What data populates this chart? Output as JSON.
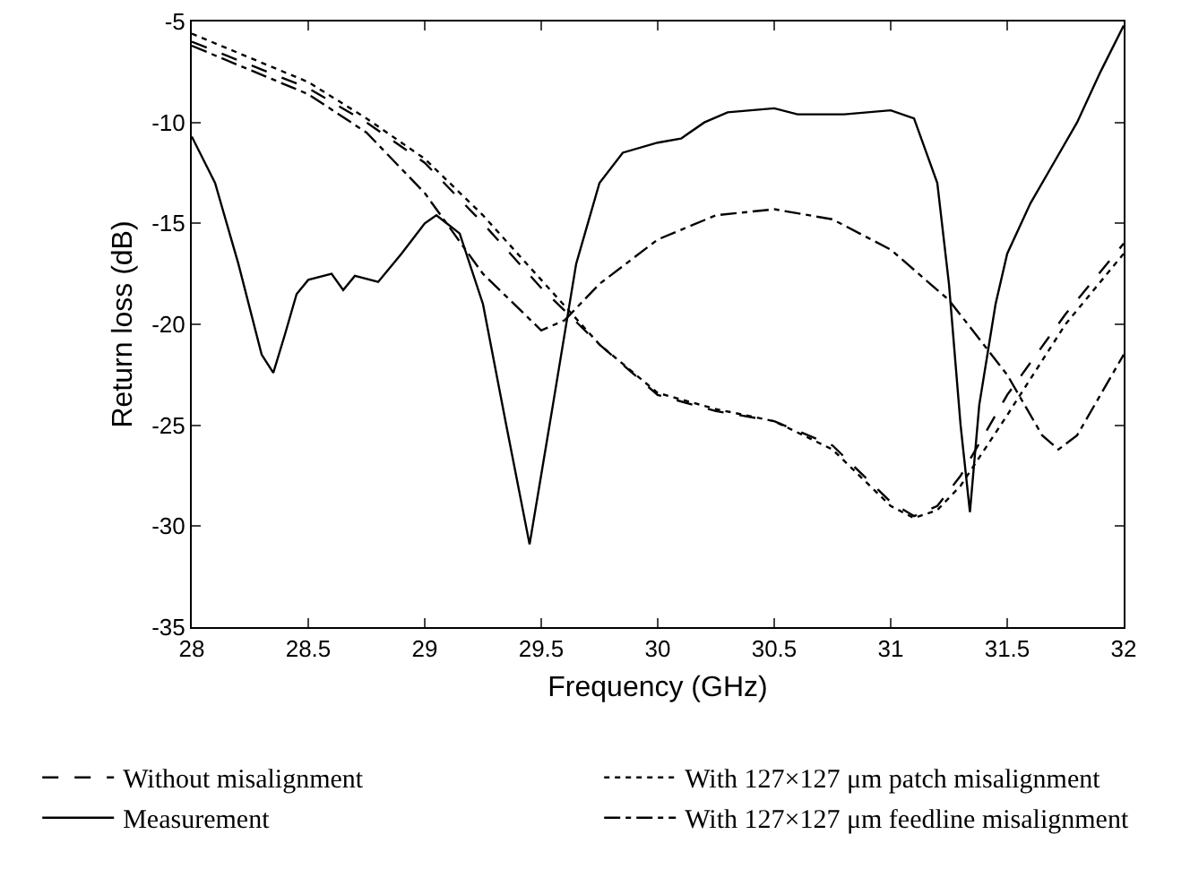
{
  "chart_data": {
    "type": "line",
    "xlabel": "Frequency (GHz)",
    "ylabel": "Return loss (dB)",
    "xlim": [
      28,
      32
    ],
    "ylim": [
      -35,
      -5
    ],
    "xticks": [
      28,
      28.5,
      29,
      29.5,
      30,
      30.5,
      31,
      31.5,
      32
    ],
    "yticks": [
      -35,
      -30,
      -25,
      -20,
      -15,
      -10,
      -5
    ],
    "grid": false,
    "legend": "bottom",
    "marker": "none",
    "series": [
      {
        "name": "Without misalignment",
        "color": "#000000",
        "line_style": "dashed",
        "x": [
          28,
          28.5,
          28.75,
          29,
          29.25,
          29.5,
          29.75,
          30,
          30.25,
          30.5,
          30.75,
          31,
          31.1,
          31.2,
          31.3,
          31.5,
          31.75,
          32
        ],
        "values": [
          -6,
          -8.3,
          -10,
          -12,
          -15,
          -18.2,
          -21,
          -23.5,
          -24.3,
          -24.8,
          -26,
          -28.8,
          -29.5,
          -29,
          -27.5,
          -23.5,
          -19.5,
          -16
        ]
      },
      {
        "name": "With 127×127 μm patch misalignment",
        "color": "#000000",
        "line_style": "dotted",
        "x": [
          28,
          28.5,
          28.75,
          29,
          29.25,
          29.5,
          29.75,
          30,
          30.25,
          30.5,
          30.75,
          31,
          31.1,
          31.2,
          31.3,
          31.5,
          31.75,
          32
        ],
        "values": [
          -5.6,
          -8,
          -9.8,
          -11.8,
          -14.6,
          -17.8,
          -21,
          -23.4,
          -24.2,
          -24.8,
          -26.2,
          -29,
          -29.6,
          -29.2,
          -28,
          -24.5,
          -20,
          -16.5
        ]
      },
      {
        "name": "Measurement",
        "color": "#000000",
        "line_style": "solid",
        "x": [
          28,
          28.1,
          28.2,
          28.3,
          28.35,
          28.4,
          28.45,
          28.5,
          28.6,
          28.65,
          28.7,
          28.8,
          28.9,
          29,
          29.05,
          29.15,
          29.25,
          29.35,
          29.45,
          29.55,
          29.65,
          29.75,
          29.85,
          30,
          30.1,
          30.2,
          30.3,
          30.5,
          30.6,
          30.8,
          31,
          31.1,
          31.2,
          31.25,
          31.3,
          31.34,
          31.38,
          31.45,
          31.5,
          31.6,
          31.7,
          31.8,
          31.9,
          32
        ],
        "values": [
          -10.7,
          -13,
          -17,
          -21.5,
          -22.4,
          -20.5,
          -18.5,
          -17.8,
          -17.5,
          -18.3,
          -17.6,
          -17.9,
          -16.5,
          -15,
          -14.6,
          -15.5,
          -19,
          -25,
          -30.9,
          -24,
          -17,
          -13,
          -11.5,
          -11,
          -10.8,
          -10,
          -9.5,
          -9.3,
          -9.6,
          -9.6,
          -9.4,
          -9.8,
          -13,
          -18,
          -25,
          -29.3,
          -24,
          -19,
          -16.5,
          -14,
          -12,
          -10,
          -7.5,
          -5.2
        ]
      },
      {
        "name": "With 127×127 μm feedline misalignment",
        "color": "#000000",
        "line_style": "dashdot",
        "x": [
          28,
          28.5,
          28.75,
          29,
          29.25,
          29.5,
          29.6,
          29.75,
          30,
          30.25,
          30.5,
          30.75,
          31,
          31.25,
          31.5,
          31.65,
          31.72,
          31.8,
          32
        ],
        "values": [
          -6.2,
          -8.6,
          -10.5,
          -13.5,
          -17.5,
          -20.3,
          -19.8,
          -18,
          -15.8,
          -14.6,
          -14.3,
          -14.8,
          -16.3,
          -18.8,
          -22.5,
          -25.5,
          -26.2,
          -25.5,
          -21.5
        ]
      }
    ]
  }
}
